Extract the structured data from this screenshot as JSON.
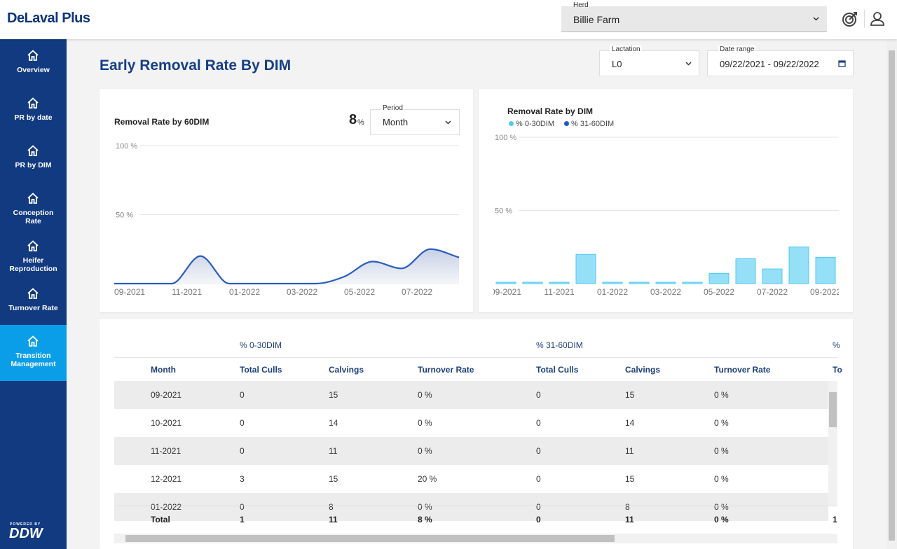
{
  "header": {
    "brand": "DeLaval Plus",
    "herd_label": "Herd",
    "herd_value": "Billie Farm"
  },
  "sidebar": {
    "items": [
      "Overview",
      "PR by date",
      "PR by DIM",
      "Conception Rate",
      "Heifer Reproduction",
      "Turnover Rate",
      "Transition Management"
    ],
    "footer_caption": "POWERED BY",
    "footer_logo": "DDW"
  },
  "page": {
    "title": "Early Removal Rate By DIM",
    "filters": [
      {
        "label": "Lactation",
        "value": "L0"
      },
      {
        "label": "Date range",
        "value": "09/22/2021 - 09/22/2022"
      }
    ]
  },
  "chart_data": [
    {
      "type": "line",
      "title": "Removal Rate by 60DIM",
      "kpi_value": 8,
      "kpi_unit": "%",
      "period_label": "Period",
      "period_value": "Month",
      "categories": [
        "09-2021",
        null,
        "11-2021",
        null,
        "01-2022",
        null,
        "03-2022",
        null,
        "05-2022",
        null,
        "07-2022",
        null,
        null
      ],
      "values": [
        0,
        0,
        0,
        20,
        0,
        0,
        0,
        0,
        5,
        16,
        11,
        25,
        19
      ],
      "color": "#2a5cc0",
      "ylim": [
        0,
        100
      ],
      "yticks": [
        {
          "value": 50,
          "label": "50 %"
        },
        {
          "value": 100,
          "label": "100 %"
        }
      ],
      "grid": true
    },
    {
      "type": "bar",
      "title": "Removal Rate by DIM",
      "categories": [
        "09-2021",
        null,
        "11-2021",
        null,
        "01-2022",
        null,
        "03-2022",
        null,
        "05-2022",
        null,
        "07-2022",
        null,
        "09-2022"
      ],
      "series": [
        {
          "name": "% 0-30DIM",
          "color": "#4fc9f1",
          "values": [
            0,
            0,
            0,
            20,
            0,
            0,
            0,
            0,
            7,
            17,
            10,
            25,
            18
          ]
        },
        {
          "name": "% 31-60DIM",
          "color": "#1f5bbf",
          "values": [
            0,
            0,
            0,
            0,
            0,
            0,
            0,
            0,
            0,
            0,
            0,
            0,
            0
          ]
        }
      ],
      "stacked": true,
      "ylim": [
        0,
        100
      ],
      "yticks": [
        {
          "value": 50,
          "label": "50 %"
        },
        {
          "value": 100,
          "label": "100 %"
        }
      ],
      "grid": true
    }
  ],
  "table": {
    "group_headers": [
      "% 0-30DIM",
      "% 31-60DIM",
      "%"
    ],
    "columns": [
      "Month",
      "Total Culls",
      "Calvings",
      "Turnover Rate",
      "Total Culls",
      "Calvings",
      "Turnover Rate",
      "To"
    ],
    "rows": [
      [
        "09-2021",
        "0",
        "15",
        "0 %",
        "0",
        "15",
        "0 %"
      ],
      [
        "10-2021",
        "0",
        "14",
        "0 %",
        "0",
        "14",
        "0 %"
      ],
      [
        "11-2021",
        "0",
        "11",
        "0 %",
        "0",
        "11",
        "0 %"
      ],
      [
        "12-2021",
        "3",
        "15",
        "20 %",
        "0",
        "15",
        "0 %"
      ],
      [
        "01-2022",
        "0",
        "8",
        "0 %",
        "0",
        "8",
        "0 %"
      ]
    ],
    "total": [
      "Total",
      "1",
      "11",
      "8 %",
      "0",
      "11",
      "0 %",
      "1"
    ]
  }
}
